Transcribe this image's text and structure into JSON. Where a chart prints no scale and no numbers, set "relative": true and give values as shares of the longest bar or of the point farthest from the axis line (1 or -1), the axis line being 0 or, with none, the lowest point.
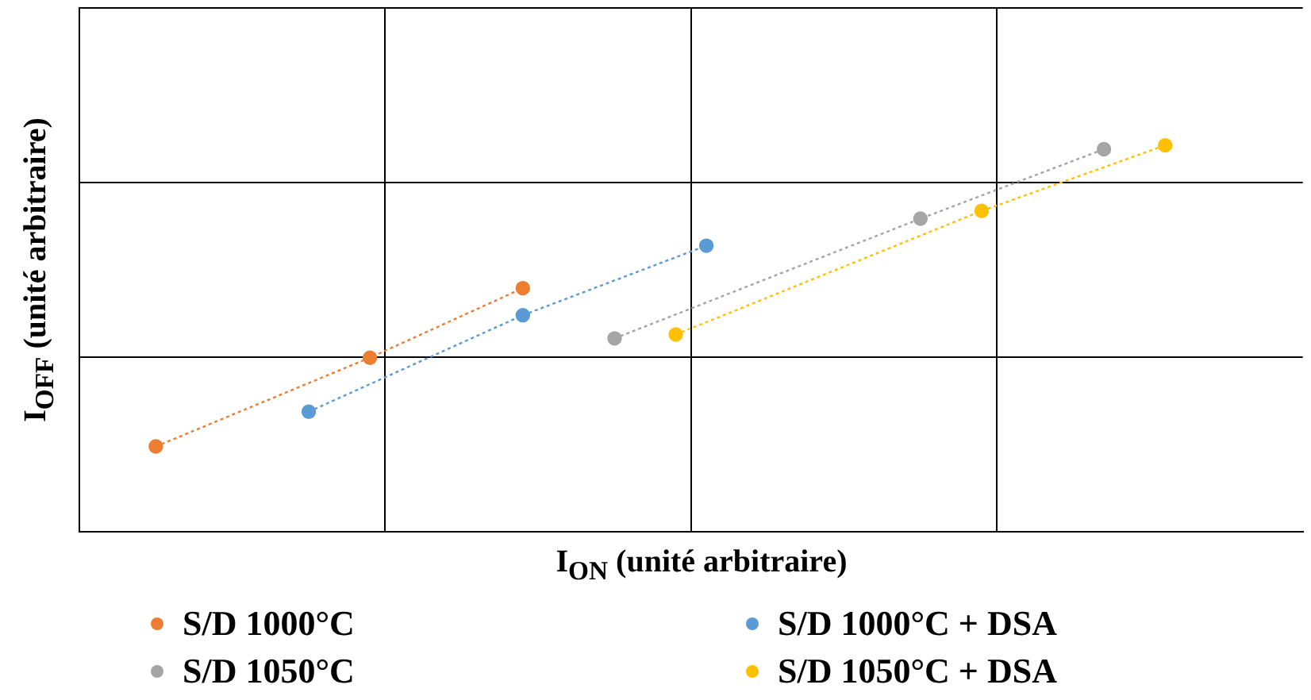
{
  "chart_data": {
    "type": "line",
    "relative": true,
    "xlabel": "I$_{ON}$ (unité arbitraire)",
    "ylabel": "I$_{OFF}$ (unité arbitraire)",
    "grid": true,
    "legend": "bottom",
    "marker": "circle",
    "line_style": "dotted",
    "categories": [
      null,
      null,
      null,
      null,
      null,
      null,
      null,
      null,
      null,
      null,
      null,
      null,
      null,
      null,
      null,
      null,
      null,
      null,
      null,
      null,
      null,
      null,
      null,
      null,
      null,
      null,
      null,
      null,
      null,
      null,
      null,
      null,
      null,
      null,
      null,
      null,
      null,
      null,
      null,
      null
    ],
    "series": [
      {
        "name": "S/D 1000°C",
        "color": "#ed7d31",
        "values": [
          null,
          null,
          0.22,
          null,
          null,
          null,
          null,
          null,
          null,
          0.45,
          null,
          null,
          null,
          null,
          0.63,
          null,
          null,
          null,
          null,
          null,
          null,
          null,
          null,
          null,
          null,
          null,
          null,
          null,
          null,
          null,
          null,
          null,
          null,
          null,
          null,
          null,
          null,
          null,
          null,
          null
        ]
      },
      {
        "name": "S/D 1000°C + DSA",
        "color": "#5b9bd5",
        "values": [
          null,
          null,
          null,
          null,
          null,
          null,
          null,
          0.31,
          null,
          null,
          null,
          null,
          null,
          null,
          0.56,
          null,
          null,
          null,
          null,
          null,
          0.74,
          null,
          null,
          null,
          null,
          null,
          null,
          null,
          null,
          null,
          null,
          null,
          null,
          null,
          null,
          null,
          null,
          null,
          null,
          null
        ]
      },
      {
        "name": "S/D 1050°C",
        "color": "#a5a5a5",
        "values": [
          null,
          null,
          null,
          null,
          null,
          null,
          null,
          null,
          null,
          null,
          null,
          null,
          null,
          null,
          null,
          null,
          null,
          0.5,
          null,
          null,
          null,
          null,
          null,
          null,
          null,
          null,
          null,
          0.81,
          null,
          null,
          null,
          null,
          null,
          0.99,
          null,
          null,
          null,
          null,
          null,
          null
        ]
      },
      {
        "name": "S/D 1050°C + DSA",
        "color": "#ffc000",
        "values": [
          null,
          null,
          null,
          null,
          null,
          null,
          null,
          null,
          null,
          null,
          null,
          null,
          null,
          null,
          null,
          null,
          null,
          null,
          null,
          0.51,
          null,
          null,
          null,
          null,
          null,
          null,
          null,
          null,
          null,
          0.83,
          null,
          null,
          null,
          null,
          null,
          1.0,
          null,
          null,
          null,
          null
        ]
      }
    ]
  }
}
